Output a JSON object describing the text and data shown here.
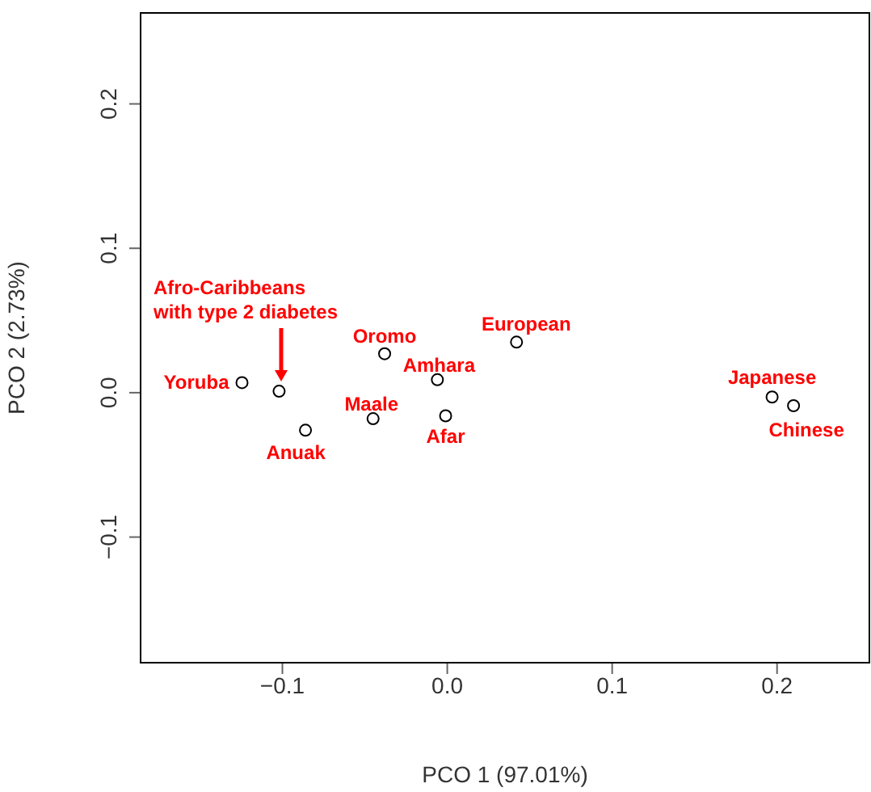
{
  "chart_data": {
    "type": "scatter",
    "xlabel": "PCO 1 (97.01%)",
    "ylabel": "PCO 2 (2.73%)",
    "x": [
      -0.1245,
      -0.102,
      -0.086,
      -0.045,
      -0.038,
      -0.006,
      -0.001,
      0.042,
      0.197,
      0.21
    ],
    "values": [
      0.007,
      0.001,
      -0.026,
      -0.018,
      0.027,
      0.009,
      -0.016,
      0.035,
      -0.003,
      -0.009
    ],
    "color": "#000000",
    "marker": "circle",
    "grid": false,
    "xlim": [
      -0.186,
      0.256
    ],
    "xticks": [
      {
        "value": -0.1,
        "label": "−0.1"
      },
      {
        "value": 0,
        "label": "0.0"
      },
      {
        "value": 0.1,
        "label": "0.1"
      },
      {
        "value": 0.2,
        "label": "0.2"
      }
    ],
    "ylim": [
      -0.187,
      0.263
    ],
    "yticks": [
      {
        "value": -0.1,
        "label": "−0.1"
      },
      {
        "value": 0,
        "label": "0.0"
      },
      {
        "value": 0.1,
        "label": "0.1"
      },
      {
        "value": 0.2,
        "label": "0.2"
      }
    ],
    "annotations": [
      {
        "text": "Yoruba",
        "x": -0.1245,
        "y": 0.007
      },
      "Afro-Caribbeans\nwith type 2 diabetes",
      {
        "text": "Anuak",
        "x": -0.086,
        "y": -0.026
      },
      {
        "text": "Maale",
        "x": -0.045,
        "y": -0.018
      },
      {
        "text": "Oromo",
        "x": -0.038,
        "y": 0.027
      },
      {
        "text": "Amhara",
        "x": -0.006,
        "y": 0.009
      },
      {
        "text": "Afar",
        "x": -0.001,
        "y": -0.016
      },
      {
        "text": "European",
        "x": 0.042,
        "y": 0.035
      },
      {
        "text": "Japanese",
        "x": 0.197,
        "y": -0.003
      },
      {
        "text": "Chinese",
        "x": 0.21,
        "y": -0.009
      }
    ]
  }
}
